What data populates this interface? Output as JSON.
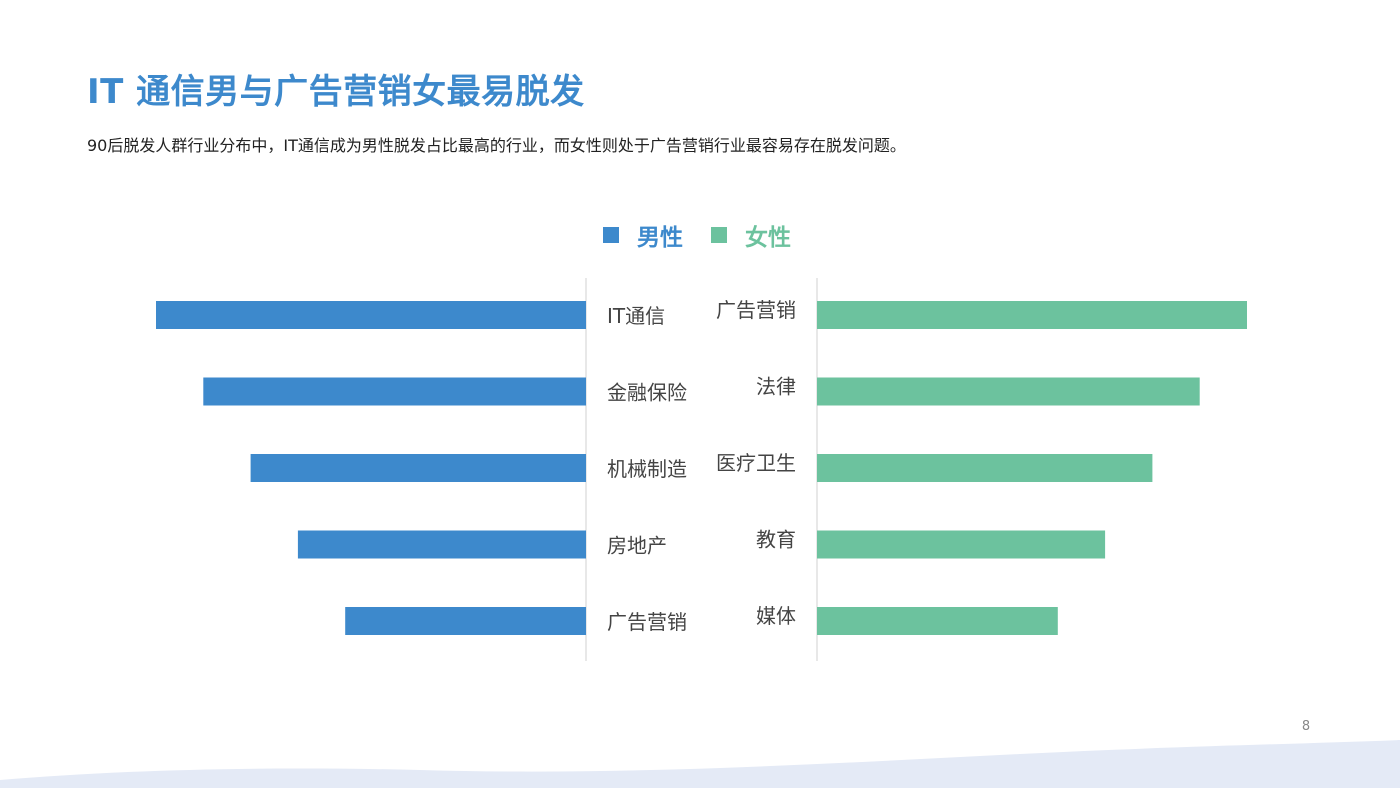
{
  "page": {
    "title": "IT 通信男与广告营销女最易脱发",
    "subtitle": "90后脱发人群行业分布中，IT通信成为男性脱发占比最高的行业，而女性则处于广告营销行业最容易存在脱发问题。",
    "page_number": "8"
  },
  "colors": {
    "title": "#3d89cc",
    "male": "#3d89cc",
    "female": "#6cc29e",
    "axis": "#d0d0d0",
    "label": "#444444",
    "wave": "#e4eaf6"
  },
  "legend": {
    "male_label": "男性",
    "female_label": "女性"
  },
  "chart_data": {
    "type": "bar",
    "orientation": "horizontal-diverging",
    "legend_position": "top-center",
    "grid": false,
    "value_axis": "none (relative lengths estimated)",
    "series": [
      {
        "name": "男性",
        "side": "left",
        "categories": [
          "IT通信",
          "金融保险",
          "机械制造",
          "房地产",
          "广告营销"
        ],
        "values": [
          100,
          89,
          78,
          67,
          56
        ]
      },
      {
        "name": "女性",
        "side": "right",
        "categories": [
          "广告营销",
          "法律",
          "医疗卫生",
          "教育",
          "媒体"
        ],
        "values": [
          100,
          89,
          78,
          67,
          56
        ]
      }
    ]
  }
}
